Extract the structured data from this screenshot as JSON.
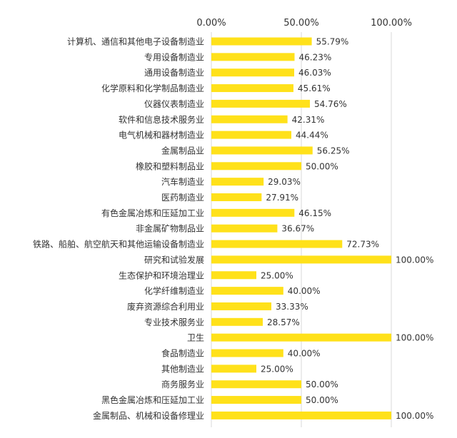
{
  "chart_data": {
    "type": "bar",
    "orientation": "horizontal",
    "categories": [
      "计算机、通信和其他电子设备制造业",
      "专用设备制造业",
      "通用设备制造业",
      "化学原料和化学制品制造业",
      "仪器仪表制造业",
      "软件和信息技术服务业",
      "电气机械和器材制造业",
      "金属制品业",
      "橡胶和塑料制品业",
      "汽车制造业",
      "医药制造业",
      "有色金属冶炼和压延加工业",
      "非金属矿物制品业",
      "铁路、船舶、航空航天和其他运输设备制造业",
      "研究和试验发展",
      "生态保护和环境治理业",
      "化学纤维制造业",
      "废弃资源综合利用业",
      "专业技术服务业",
      "卫生",
      "食品制造业",
      "其他制造业",
      "商务服务业",
      "黑色金属冶炼和压延加工业",
      "金属制品、机械和设备修理业"
    ],
    "values": [
      55.79,
      46.23,
      46.03,
      45.61,
      54.76,
      42.31,
      44.44,
      56.25,
      50.0,
      29.03,
      27.91,
      46.15,
      36.67,
      72.73,
      100.0,
      25.0,
      40.0,
      33.33,
      28.57,
      100.0,
      40.0,
      25.0,
      50.0,
      50.0,
      100.0
    ],
    "data_labels": [
      "55.79%",
      "46.23%",
      "46.03%",
      "45.61%",
      "54.76%",
      "42.31%",
      "44.44%",
      "56.25%",
      "50.00%",
      "29.03%",
      "27.91%",
      "46.15%",
      "36.67%",
      "72.73%",
      "100.00%",
      "25.00%",
      "40.00%",
      "33.33%",
      "28.57%",
      "100.00%",
      "40.00%",
      "25.00%",
      "50.00%",
      "50.00%",
      "100.00%"
    ],
    "x_ticks": [
      0,
      50,
      100
    ],
    "x_tick_labels": [
      "0.00%",
      "50.00%",
      "100.00%"
    ],
    "xlim": [
      0,
      100
    ],
    "x_axis_position": "top",
    "grid": "vertical",
    "title": "",
    "xlabel": "",
    "ylabel": "",
    "bar_color": "#FFE11A",
    "grid_color": "#D9D9D9",
    "text_color": "#333333"
  }
}
